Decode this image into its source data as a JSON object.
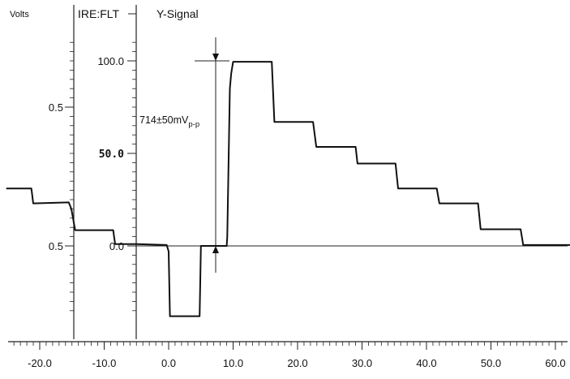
{
  "chart_data": {
    "type": "line",
    "title": "Y-Signal",
    "volts_label": "Volts",
    "ire_label": "IRE:FLT",
    "annotation": {
      "value_text": "714±50mV",
      "subscript_text": "p-p"
    },
    "volts_ticks": [
      {
        "label": "0.5",
        "ire": 75
      },
      {
        "label": "0.5",
        "ire": 0
      }
    ],
    "ire_ticks": [
      {
        "label": "100.0",
        "ire": 100,
        "style": "normal"
      },
      {
        "label": "50.0",
        "ire": 50,
        "style": "bold"
      },
      {
        "label": "0.0",
        "ire": 0,
        "style": "normal"
      }
    ],
    "x_ticks": [
      -20,
      -10,
      0,
      10,
      20,
      30,
      40,
      50,
      60
    ],
    "x_tick_labels": [
      "-20.0",
      "-10.0",
      "0.0",
      "10.0",
      "20.0",
      "30.0",
      "40.0",
      "50.0",
      "60.0"
    ],
    "xlim": [
      -25,
      63.5
    ],
    "ylim": [
      -40,
      110
    ],
    "series": [
      {
        "points": [
          [
            -25.2,
            31
          ],
          [
            -21.3,
            31
          ],
          [
            -21.0,
            23
          ],
          [
            -15.5,
            23.5
          ],
          [
            -15.1,
            20
          ],
          [
            -14.5,
            8.5
          ],
          [
            -8.6,
            8.5
          ],
          [
            -8.3,
            1
          ],
          [
            -5.0,
            1
          ],
          [
            -0.3,
            0.5
          ],
          [
            0.0,
            -3
          ],
          [
            0.2,
            -38
          ],
          [
            4.8,
            -38
          ],
          [
            5.0,
            0
          ],
          [
            9.0,
            0
          ],
          [
            9.1,
            5
          ],
          [
            9.5,
            85
          ],
          [
            9.7,
            93
          ],
          [
            10.0,
            99.5
          ],
          [
            16.0,
            99.5
          ],
          [
            16.4,
            67
          ],
          [
            22.4,
            67
          ],
          [
            22.9,
            53.5
          ],
          [
            29.0,
            53.5
          ],
          [
            29.3,
            44.5
          ],
          [
            35.2,
            44.5
          ],
          [
            35.6,
            31
          ],
          [
            41.6,
            31
          ],
          [
            42.0,
            23
          ],
          [
            48.0,
            23
          ],
          [
            48.4,
            9
          ],
          [
            54.6,
            9
          ],
          [
            55.0,
            0.5
          ],
          [
            62.7,
            0.5
          ],
          [
            62.9,
            -5
          ],
          [
            63.1,
            -37
          ]
        ]
      }
    ],
    "colors": {
      "trace": "#111111",
      "axes": "#222222",
      "background": "#ffffff"
    }
  }
}
